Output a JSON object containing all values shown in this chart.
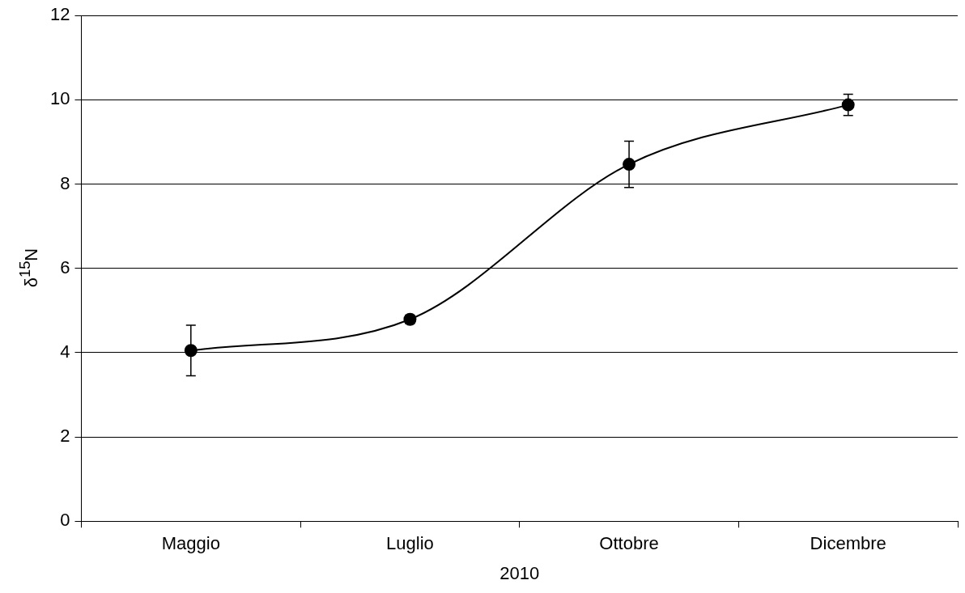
{
  "chart_data": {
    "type": "line",
    "xlabel": "2010",
    "ylabel": "δ$^{15}$N",
    "categories": [
      "Maggio",
      "Luglio",
      "Ottobre",
      "Dicembre"
    ],
    "series": [
      {
        "color": "#000000",
        "values": [
          4.05,
          4.79,
          8.47,
          9.88
        ],
        "errors": [
          0.6,
          0.1,
          0.55,
          0.25
        ]
      }
    ],
    "ylim": [
      0,
      12
    ],
    "yticks": [
      0,
      2,
      4,
      6,
      8,
      10,
      12
    ],
    "grid": "y",
    "legend": false,
    "marker": "circle",
    "line_style": "solid"
  }
}
